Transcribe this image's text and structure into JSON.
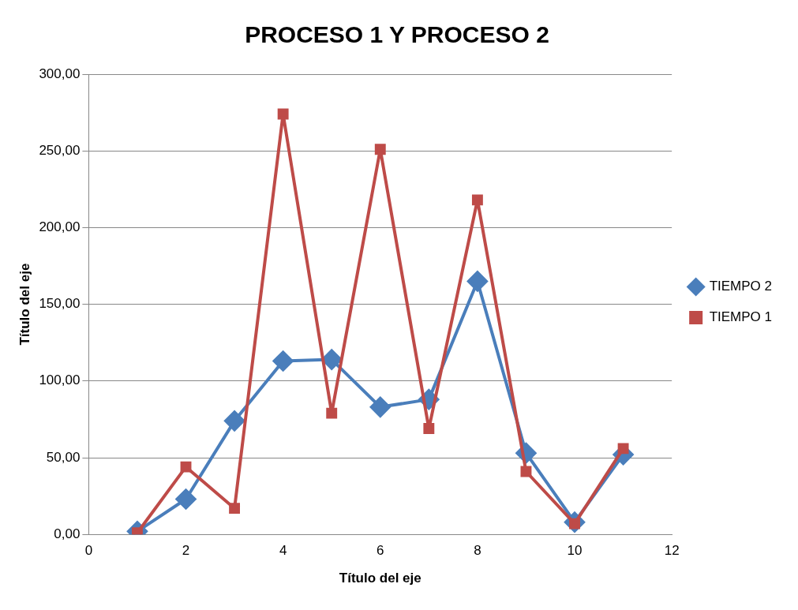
{
  "chart_data": {
    "type": "line",
    "title": "PROCESO 1 Y PROCESO 2",
    "xlabel": "Título del eje",
    "ylabel": "Título del eje",
    "x": [
      1,
      2,
      3,
      4,
      5,
      6,
      7,
      8,
      9,
      10,
      11
    ],
    "series": [
      {
        "name": "TIEMPO 2",
        "color": "#4a7ebb",
        "marker": "diamond",
        "values": [
          2,
          23,
          74,
          113,
          114,
          83,
          88,
          165,
          53,
          8,
          52
        ]
      },
      {
        "name": "TIEMPO 1",
        "color": "#be4b48",
        "marker": "square",
        "values": [
          1,
          44,
          17,
          274,
          79,
          251,
          69,
          218,
          41,
          7,
          56
        ]
      }
    ],
    "xlim": [
      0,
      12
    ],
    "xticks": [
      0,
      2,
      4,
      6,
      8,
      10,
      12
    ],
    "ylim": [
      0,
      300
    ],
    "yticks": [
      {
        "value": 0,
        "label": "0,00"
      },
      {
        "value": 50,
        "label": "50,00"
      },
      {
        "value": 100,
        "label": "100,00"
      },
      {
        "value": 150,
        "label": "150,00"
      },
      {
        "value": 200,
        "label": "200,00"
      },
      {
        "value": 250,
        "label": "250,00"
      },
      {
        "value": 300,
        "label": "300,00"
      }
    ],
    "grid": "y",
    "legend": "right",
    "line_style": "solid"
  }
}
